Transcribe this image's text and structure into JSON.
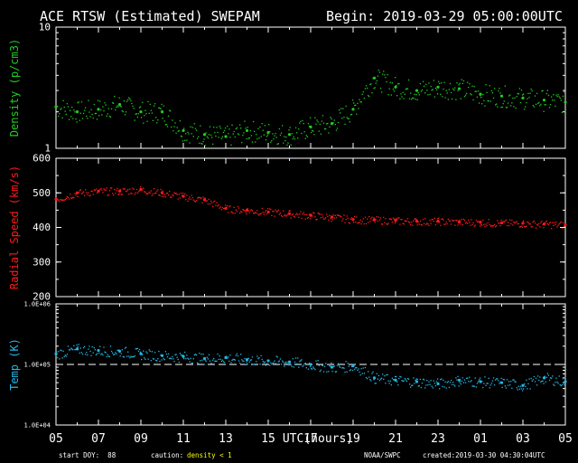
{
  "header": {
    "title": "ACE RTSW (Estimated) SWEPAM",
    "begin": "Begin: 2019-03-29 05:00:00UTC"
  },
  "footer": {
    "start_doy": "start DOY:  88",
    "caution_label": "caution:",
    "caution_value": "density < 1",
    "source": "NOAA/SWPC",
    "created": "created:2019-03-30 04:30:04UTC"
  },
  "colors": {
    "background": "#000000",
    "axes": "#ffffff",
    "density": "#22cc22",
    "speed": "#ff1a1a",
    "temp": "#22b8e6",
    "caution": "#ffff00"
  },
  "chart_data": [
    {
      "type": "scatter",
      "panel": "density",
      "ylabel": "Density (p/cm3)",
      "yscale": "log",
      "ylim": [
        1,
        10
      ],
      "ytick_labels": [
        "10",
        "1"
      ],
      "x": [
        5,
        6,
        7,
        8,
        9,
        10,
        11,
        12,
        13,
        14,
        15,
        16,
        17,
        18,
        19,
        20,
        21,
        22,
        23,
        24,
        25,
        26,
        27,
        28,
        29
      ],
      "series": [
        {
          "values": [
            2.2,
            2.0,
            2.1,
            2.3,
            2.0,
            2.0,
            1.4,
            1.3,
            1.25,
            1.4,
            1.35,
            1.3,
            1.5,
            1.6,
            2.1,
            3.8,
            3.2,
            3.0,
            3.2,
            3.1,
            2.8,
            2.7,
            2.6,
            2.5,
            2.4
          ]
        }
      ]
    },
    {
      "type": "scatter",
      "panel": "speed",
      "ylabel": "Radial Speed (km/s)",
      "ylim": [
        200,
        600
      ],
      "ytick_labels": [
        "200",
        "300",
        "400",
        "500",
        "600"
      ],
      "x": [
        5,
        6,
        7,
        8,
        9,
        10,
        11,
        12,
        13,
        14,
        15,
        16,
        17,
        18,
        19,
        20,
        21,
        22,
        23,
        24,
        25,
        26,
        27,
        28,
        29
      ],
      "series": [
        {
          "values": [
            482,
            500,
            505,
            505,
            510,
            500,
            490,
            480,
            455,
            450,
            445,
            440,
            435,
            430,
            423,
            422,
            420,
            418,
            418,
            416,
            415,
            413,
            412,
            410,
            408
          ]
        }
      ]
    },
    {
      "type": "scatter",
      "panel": "temp",
      "ylabel": "Temp (K)",
      "yscale": "log",
      "ylim": [
        10000,
        1000000
      ],
      "ytick_labels": [
        "1.0E+06",
        "1.0E+05",
        "1.0E+04"
      ],
      "reference_line": 100000,
      "x": [
        5,
        6,
        7,
        8,
        9,
        10,
        11,
        12,
        13,
        14,
        15,
        16,
        17,
        18,
        19,
        20,
        21,
        22,
        23,
        24,
        25,
        26,
        27,
        28,
        29
      ],
      "series": [
        {
          "values": [
            150000,
            180000,
            170000,
            165000,
            150000,
            140000,
            135000,
            125000,
            130000,
            120000,
            115000,
            110000,
            100000,
            90000,
            95000,
            60000,
            55000,
            52000,
            48000,
            55000,
            52000,
            50000,
            45000,
            60000,
            52000
          ]
        }
      ],
      "xlabel": "UTC(hours)",
      "xtick_labels": [
        "05",
        "07",
        "09",
        "11",
        "13",
        "15",
        "17",
        "19",
        "21",
        "23",
        "01",
        "03",
        "05"
      ]
    }
  ]
}
